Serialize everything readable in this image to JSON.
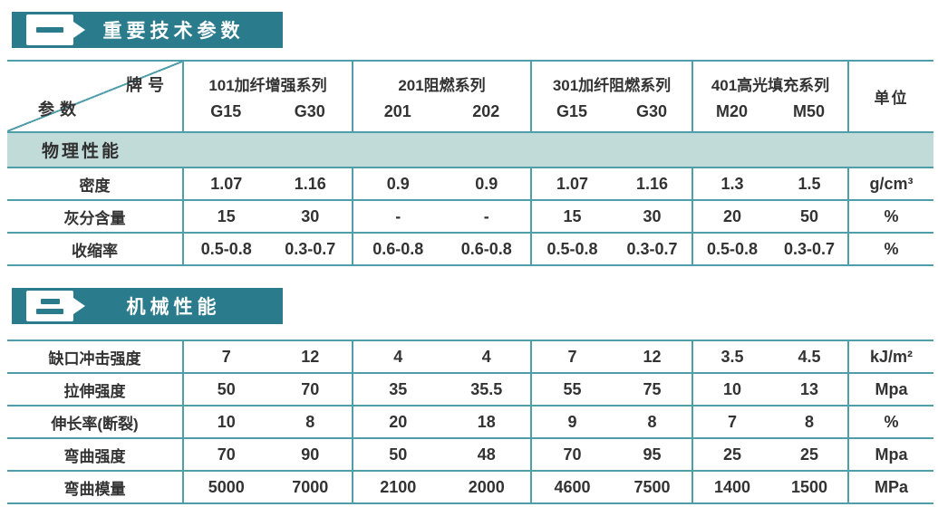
{
  "page": {
    "accent_teal": "#2a7c8c",
    "section_row_bg": "#c1dbd9",
    "border_teal": "#4f9fab",
    "text_color": "#333333"
  },
  "section1": {
    "badge_numeral": "一",
    "title": "重要技术参数"
  },
  "section2": {
    "badge_numeral": "二",
    "title": "机械性能"
  },
  "table_header": {
    "corner_top": "牌号",
    "corner_bottom": "参数",
    "unit": "单位",
    "groups": [
      {
        "name": "101加纤增强系列",
        "grades": [
          "G15",
          "G30"
        ]
      },
      {
        "name": "201阻燃系列",
        "grades": [
          "201",
          "202"
        ]
      },
      {
        "name": "301加纤阻燃系列",
        "grades": [
          "G15",
          "G30"
        ]
      },
      {
        "name": "401高光填充系列",
        "grades": [
          "M20",
          "M50"
        ]
      }
    ]
  },
  "physical": {
    "section_label": "物理性能",
    "rows": [
      {
        "label": "密度",
        "values": [
          "1.07",
          "1.16",
          "0.9",
          "0.9",
          "1.07",
          "1.16",
          "1.3",
          "1.5"
        ],
        "unit": "g/cm³"
      },
      {
        "label": "灰分含量",
        "values": [
          "15",
          "30",
          "-",
          "-",
          "15",
          "30",
          "20",
          "50"
        ],
        "unit": "%"
      },
      {
        "label": "收缩率",
        "values": [
          "0.5-0.8",
          "0.3-0.7",
          "0.6-0.8",
          "0.6-0.8",
          "0.5-0.8",
          "0.3-0.7",
          "0.5-0.8",
          "0.3-0.7"
        ],
        "unit": "%"
      }
    ]
  },
  "mechanical": {
    "rows": [
      {
        "label": "缺口冲击强度",
        "values": [
          "7",
          "12",
          "4",
          "4",
          "7",
          "12",
          "3.5",
          "4.5"
        ],
        "unit": "kJ/m²"
      },
      {
        "label": "拉伸强度",
        "values": [
          "50",
          "70",
          "35",
          "35.5",
          "55",
          "75",
          "10",
          "13"
        ],
        "unit": "Mpa"
      },
      {
        "label": "伸长率(断裂)",
        "values": [
          "10",
          "8",
          "20",
          "18",
          "9",
          "8",
          "7",
          "8"
        ],
        "unit": "%"
      },
      {
        "label": "弯曲强度",
        "values": [
          "70",
          "90",
          "50",
          "48",
          "70",
          "95",
          "25",
          "25"
        ],
        "unit": "Mpa"
      },
      {
        "label": "弯曲模量",
        "values": [
          "5000",
          "7000",
          "2100",
          "2000",
          "4600",
          "7500",
          "1400",
          "1500"
        ],
        "unit": "MPa"
      }
    ]
  }
}
